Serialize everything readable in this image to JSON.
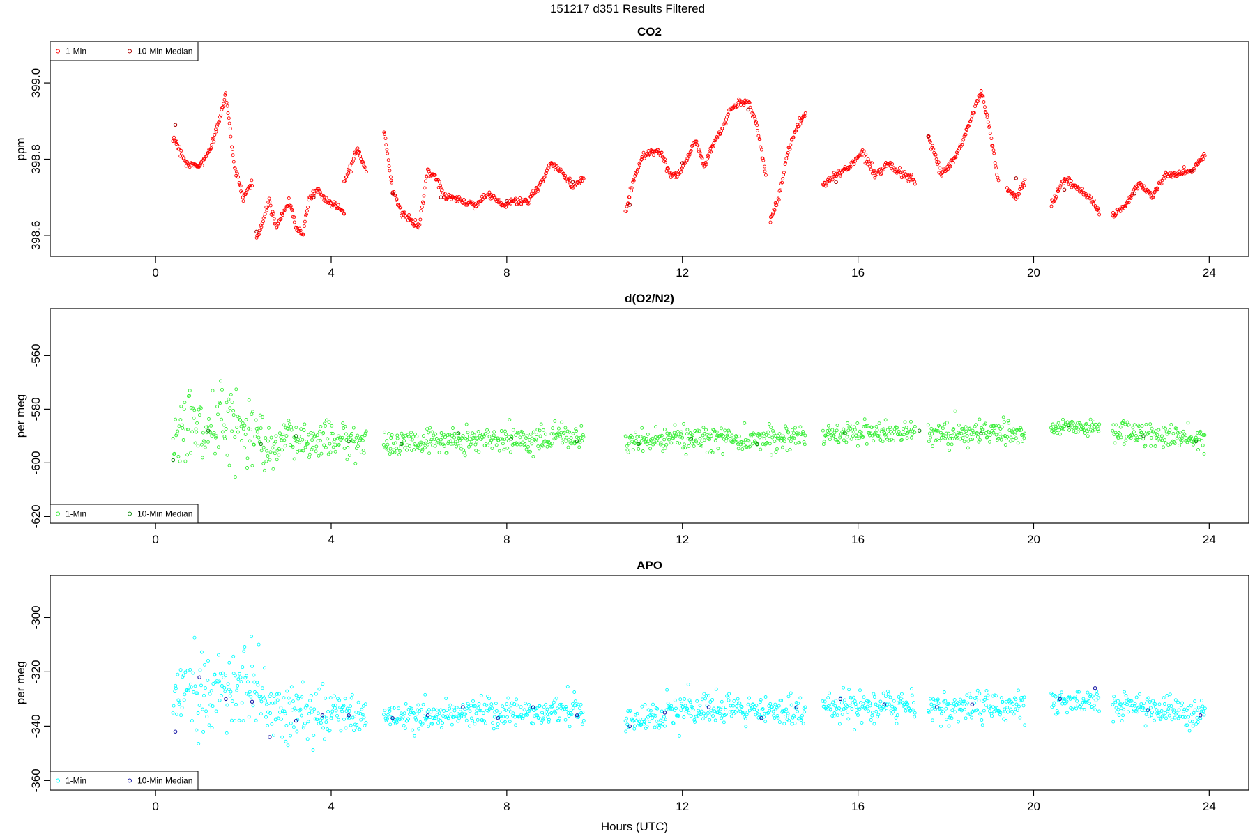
{
  "figure": {
    "title": "151217   d351   Results Filtered",
    "xlabel": "Hours (UTC)"
  },
  "chart_data": [
    {
      "type": "scatter",
      "title": "CO2",
      "xlabel": "",
      "ylabel": "ppm",
      "xlim": [
        -2.4,
        24.9
      ],
      "ylim": [
        398.545,
        399.108
      ],
      "xticks": [
        0,
        4,
        8,
        12,
        16,
        20,
        24
      ],
      "xtick_labels": [
        "0",
        "4",
        "8",
        "12",
        "16",
        "20",
        "24"
      ],
      "yticks": [
        398.6,
        398.8,
        399.0
      ],
      "ytick_labels": [
        "398.6",
        "398.8",
        "399.0"
      ],
      "legend": {
        "position": "top-left",
        "entries": [
          "1-Min",
          "10-Min Median"
        ]
      },
      "series": [
        {
          "name": "1-Min",
          "color": "#ff0000",
          "segments": [
            {
              "x": [
                0.4,
                0.7,
                1.0,
                1.3,
                1.6,
                1.8,
                2.0,
                2.2
              ],
              "y": [
                398.86,
                398.79,
                398.78,
                398.84,
                398.97,
                398.78,
                398.7,
                398.74
              ]
            },
            {
              "x": [
                2.3,
                2.45,
                2.6,
                2.75,
                2.9,
                3.05,
                3.2,
                3.35,
                3.5,
                3.7,
                3.9,
                4.1,
                4.3
              ],
              "y": [
                398.59,
                398.64,
                398.69,
                398.62,
                398.66,
                398.69,
                398.62,
                398.6,
                398.7,
                398.72,
                398.69,
                398.68,
                398.66
              ]
            },
            {
              "x": [
                4.3,
                4.6,
                4.8
              ],
              "y": [
                398.74,
                398.83,
                398.77
              ]
            },
            {
              "x": [
                5.2,
                5.4,
                5.6,
                5.8,
                6.0,
                6.2,
                6.4,
                6.6,
                6.8,
                7.0,
                7.3,
                7.6,
                7.9,
                8.2,
                8.5,
                8.8,
                9.0,
                9.2,
                9.5,
                9.75
              ],
              "y": [
                398.88,
                398.72,
                398.66,
                398.64,
                398.62,
                398.77,
                398.75,
                398.7,
                398.7,
                398.69,
                398.68,
                398.71,
                398.68,
                398.69,
                398.69,
                398.74,
                398.79,
                398.77,
                398.73,
                398.75
              ]
            },
            {
              "x": [
                10.7,
                10.9,
                11.1,
                11.3,
                11.5,
                11.7,
                11.9,
                12.1,
                12.3,
                12.5,
                12.7,
                12.9,
                13.1,
                13.3,
                13.5,
                13.7,
                13.9
              ],
              "y": [
                398.66,
                398.75,
                398.81,
                398.82,
                398.82,
                398.76,
                398.76,
                398.8,
                398.85,
                398.78,
                398.84,
                398.88,
                398.93,
                398.95,
                398.95,
                398.89,
                398.76
              ]
            },
            {
              "x": [
                14.0,
                14.2,
                14.4,
                14.6,
                14.8
              ],
              "y": [
                398.64,
                398.7,
                398.82,
                398.88,
                398.92
              ]
            },
            {
              "x": [
                15.2,
                15.5,
                15.8,
                16.1,
                16.4,
                16.7,
                17.0,
                17.3
              ],
              "y": [
                398.73,
                398.76,
                398.78,
                398.82,
                398.76,
                398.79,
                398.76,
                398.74
              ]
            },
            {
              "x": [
                17.6,
                17.9,
                18.2,
                18.5,
                18.8,
                19.0,
                19.2
              ],
              "y": [
                398.86,
                398.76,
                398.8,
                398.88,
                398.98,
                398.88,
                398.74
              ]
            },
            {
              "x": [
                19.4,
                19.6,
                19.8
              ],
              "y": [
                398.72,
                398.7,
                398.74
              ]
            },
            {
              "x": [
                20.4,
                20.7,
                21.0,
                21.3,
                21.5
              ],
              "y": [
                398.68,
                398.75,
                398.72,
                398.7,
                398.66
              ]
            },
            {
              "x": [
                21.8,
                22.1,
                22.4,
                22.7,
                23.0,
                23.3,
                23.6,
                23.9
              ],
              "y": [
                398.65,
                398.68,
                398.74,
                398.7,
                398.76,
                398.76,
                398.77,
                398.81
              ]
            }
          ]
        },
        {
          "name": "10-Min Median",
          "color": "#aa0000",
          "points": {
            "x": [
              0.45,
              2.3,
              3.6,
              5.4,
              6.5,
              8.0,
              9.5,
              10.8,
              12.0,
              13.5,
              15.5,
              17.6,
              19.6,
              20.7,
              22.3,
              23.6
            ],
            "y": [
              398.89,
              398.61,
              398.7,
              398.71,
              398.7,
              398.69,
              398.74,
              398.68,
              398.79,
              398.93,
              398.74,
              398.86,
              398.75,
              398.72,
              398.71,
              398.77
            ]
          }
        }
      ]
    },
    {
      "type": "scatter",
      "title": "d(O2/N2)",
      "xlabel": "",
      "ylabel": "per meg",
      "xlim": [
        -2.4,
        24.9
      ],
      "ylim": [
        -622.5,
        -542.5
      ],
      "xticks": [
        0,
        4,
        8,
        12,
        16,
        20,
        24
      ],
      "xtick_labels": [
        "0",
        "4",
        "8",
        "12",
        "16",
        "20",
        "24"
      ],
      "yticks": [
        -620,
        -600,
        -580,
        -560
      ],
      "ytick_labels": [
        "-620",
        "-600",
        "-580",
        "-560"
      ],
      "legend": {
        "position": "bottom-left",
        "entries": [
          "1-Min",
          "10-Min Median"
        ]
      },
      "series": [
        {
          "name": "1-Min",
          "color": "#33ee33",
          "segments": [
            {
              "x": [
                0.4,
                0.8,
                1.2,
                1.6,
                2.0,
                2.4,
                2.8,
                3.2,
                3.6,
                4.0,
                4.4,
                4.8
              ],
              "y": [
                -592,
                -584,
                -590,
                -583,
                -586,
                -590,
                -593,
                -591,
                -592,
                -590,
                -592,
                -592
              ],
              "spread": [
                12,
                14,
                13,
                12,
                12,
                10,
                9,
                8,
                7,
                6,
                6,
                5
              ]
            },
            {
              "x": [
                5.2,
                6.2,
                7.2,
                8.2,
                9.2,
                9.75
              ],
              "y": [
                -593,
                -592,
                -591,
                -591,
                -590,
                -591
              ],
              "spread": [
                4,
                4,
                4,
                4,
                4,
                4
              ]
            },
            {
              "x": [
                10.7,
                11.7,
                12.7,
                13.7,
                14.8
              ],
              "y": [
                -593,
                -591,
                -591,
                -591,
                -590
              ],
              "spread": [
                4,
                4,
                4,
                4,
                4
              ]
            },
            {
              "x": [
                15.2,
                16.2,
                17.3
              ],
              "y": [
                -589,
                -589,
                -588
              ],
              "spread": [
                4,
                4,
                4
              ]
            },
            {
              "x": [
                17.6,
                18.6,
                19.8
              ],
              "y": [
                -589,
                -589,
                -589
              ],
              "spread": [
                4,
                4,
                4
              ]
            },
            {
              "x": [
                20.4,
                21.5
              ],
              "y": [
                -587,
                -587
              ],
              "spread": [
                3,
                3
              ]
            },
            {
              "x": [
                21.8,
                22.8,
                23.9
              ],
              "y": [
                -588,
                -590,
                -592
              ],
              "spread": [
                4,
                4,
                4
              ]
            }
          ]
        },
        {
          "name": "10-Min Median",
          "color": "#118811",
          "points": {
            "x": [
              0.4,
              1.2,
              2.4,
              3.2,
              4.4,
              5.6,
              6.9,
              8.1,
              9.6,
              11.0,
              12.2,
              13.7,
              15.7,
              17.4,
              18.8,
              20.8,
              22.5,
              23.7
            ],
            "y": [
              -599,
              -588,
              -593,
              -590,
              -592,
              -593,
              -589,
              -591,
              -592,
              -593,
              -591,
              -593,
              -589,
              -588,
              -589,
              -586,
              -590,
              -592
            ]
          }
        }
      ]
    },
    {
      "type": "scatter",
      "title": "APO",
      "xlabel": "Hours (UTC)",
      "ylabel": "per meg",
      "xlim": [
        -2.4,
        24.9
      ],
      "ylim": [
        -363.5,
        -284.5
      ],
      "xticks": [
        0,
        4,
        8,
        12,
        16,
        20,
        24
      ],
      "xtick_labels": [
        "0",
        "4",
        "8",
        "12",
        "16",
        "20",
        "24"
      ],
      "yticks": [
        -360,
        -340,
        -320,
        -300
      ],
      "ytick_labels": [
        "-360",
        "-340",
        "-320",
        "-300"
      ],
      "legend": {
        "position": "bottom-left",
        "entries": [
          "1-Min",
          "10-Min Median"
        ]
      },
      "series": [
        {
          "name": "1-Min",
          "color": "#00ffff",
          "segments": [
            {
              "x": [
                0.4,
                0.8,
                1.2,
                1.6,
                2.0,
                2.4,
                2.8,
                3.2,
                3.6,
                4.0,
                4.4,
                4.8
              ],
              "y": [
                -330,
                -322,
                -326,
                -328,
                -324,
                -330,
                -336,
                -334,
                -336,
                -334,
                -336,
                -337
              ],
              "spread": [
                14,
                16,
                15,
                14,
                14,
                12,
                10,
                9,
                8,
                7,
                6,
                5
              ]
            },
            {
              "x": [
                5.2,
                6.2,
                7.2,
                8.2,
                9.2,
                9.75
              ],
              "y": [
                -337,
                -336,
                -335,
                -335,
                -334,
                -335
              ],
              "spread": [
                5,
                5,
                5,
                5,
                5,
                5
              ]
            },
            {
              "x": [
                10.7,
                11.7,
                12.7,
                13.7,
                14.8
              ],
              "y": [
                -338,
                -335,
                -334,
                -335,
                -334
              ],
              "spread": [
                5,
                5,
                5,
                5,
                5
              ]
            },
            {
              "x": [
                15.2,
                16.2,
                17.3
              ],
              "y": [
                -333,
                -333,
                -332
              ],
              "spread": [
                5,
                5,
                5
              ]
            },
            {
              "x": [
                17.6,
                18.6,
                19.8
              ],
              "y": [
                -333,
                -333,
                -332
              ],
              "spread": [
                5,
                5,
                5
              ]
            },
            {
              "x": [
                20.4,
                21.5
              ],
              "y": [
                -331,
                -331
              ],
              "spread": [
                4,
                4
              ]
            },
            {
              "x": [
                21.8,
                22.8,
                23.9
              ],
              "y": [
                -332,
                -334,
                -336
              ],
              "spread": [
                5,
                5,
                5
              ]
            }
          ]
        },
        {
          "name": "10-Min Median",
          "color": "#1a1aa6",
          "points": {
            "x": [
              0.45,
              1.0,
              1.6,
              2.2,
              2.6,
              3.2,
              3.8,
              4.4,
              5.4,
              6.2,
              7.0,
              7.8,
              8.6,
              9.6,
              10.8,
              11.6,
              12.6,
              13.8,
              14.6,
              15.6,
              16.6,
              17.8,
              18.6,
              20.6,
              21.4,
              22.6,
              23.8
            ],
            "y": [
              -342,
              -322,
              -330,
              -331,
              -344,
              -338,
              -336,
              -336,
              -337,
              -336,
              -333,
              -337,
              -333,
              -336,
              -340,
              -335,
              -333,
              -337,
              -333,
              -330,
              -332,
              -333,
              -332,
              -330,
              -326,
              -334,
              -336
            ]
          }
        }
      ]
    }
  ]
}
